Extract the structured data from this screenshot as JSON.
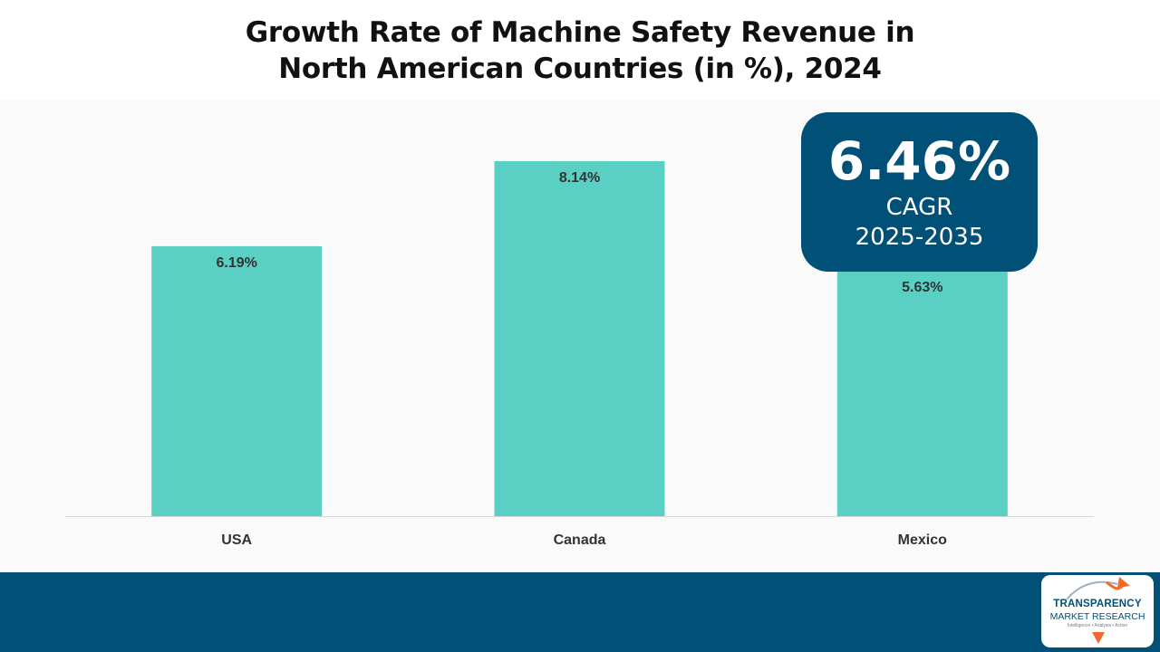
{
  "title_line1": "Growth Rate of Machine Safety Revenue in",
  "title_line2": "North American Countries (in %), 2024",
  "colors": {
    "bar": "#5ad0c4",
    "axis": "#d6d6d6",
    "label_text": "#333333",
    "accent_navy": "#005078",
    "logo_orange": "#f26a2e"
  },
  "callout": {
    "value": "6.46%",
    "label": "CAGR",
    "period": "2025-2035"
  },
  "logo": {
    "line1": "TRANSPARENCY",
    "line2": "MARKET RESEARCH",
    "tagline": "Intelligence • Analysis • Action",
    "icon": "growth-arrow-icon"
  },
  "chart_data": {
    "type": "bar",
    "title": "Growth Rate of Machine Safety Revenue in North American Countries (in %), 2024",
    "categories": [
      "USA",
      "Canada",
      "Mexico"
    ],
    "values": [
      6.19,
      8.14,
      5.63
    ],
    "data_labels": [
      "6.19%",
      "8.14%",
      "5.63%"
    ],
    "unit": "%",
    "xlabel": "",
    "ylabel": "",
    "ylim": [
      0,
      8.14
    ],
    "grid": false,
    "legend": "none"
  }
}
